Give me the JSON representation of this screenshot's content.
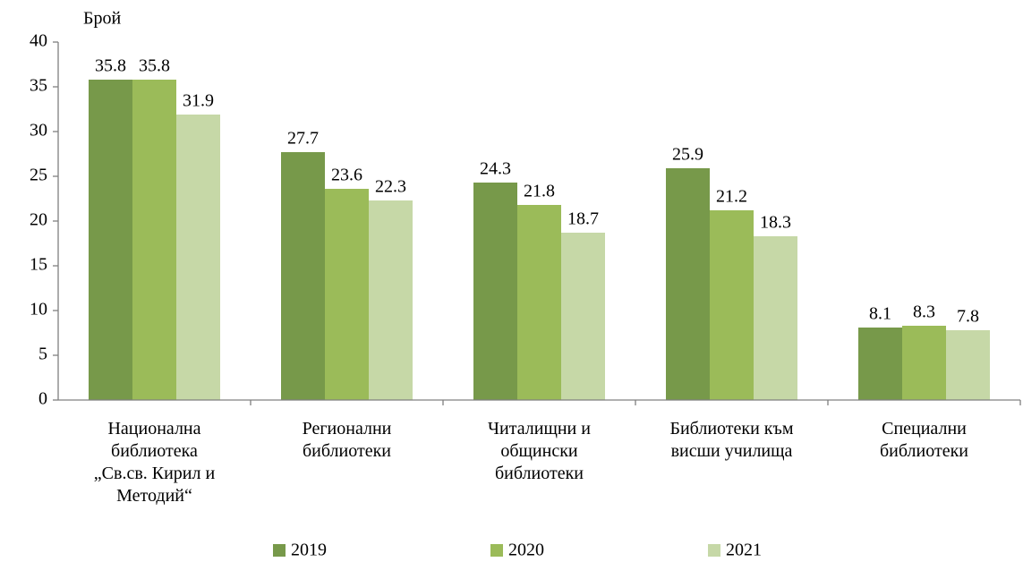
{
  "chart_data": {
    "type": "bar",
    "y_label": "Брой",
    "categories": [
      [
        "Национална",
        "библиотека",
        "„Св.св. Кирил и",
        "Методий“"
      ],
      [
        "Регионални",
        "библиотеки"
      ],
      [
        "Читалищни и",
        "общински",
        "библиотеки"
      ],
      [
        "Библиотеки към",
        "висши училища"
      ],
      [
        "Специални",
        "библиотеки"
      ]
    ],
    "series": [
      {
        "name": "2019",
        "color": "#77994a",
        "values": [
          35.8,
          27.7,
          24.3,
          25.9,
          8.1
        ]
      },
      {
        "name": "2020",
        "color": "#9bbb59",
        "values": [
          35.8,
          23.6,
          21.8,
          21.2,
          8.3
        ]
      },
      {
        "name": "2021",
        "color": "#c6d8a7",
        "values": [
          31.9,
          22.3,
          18.7,
          18.3,
          7.8
        ]
      }
    ],
    "ylim": [
      0,
      40
    ],
    "yticks": [
      0,
      5,
      10,
      15,
      20,
      25,
      30,
      35,
      40
    ],
    "grid": false,
    "legend": "bottom"
  }
}
